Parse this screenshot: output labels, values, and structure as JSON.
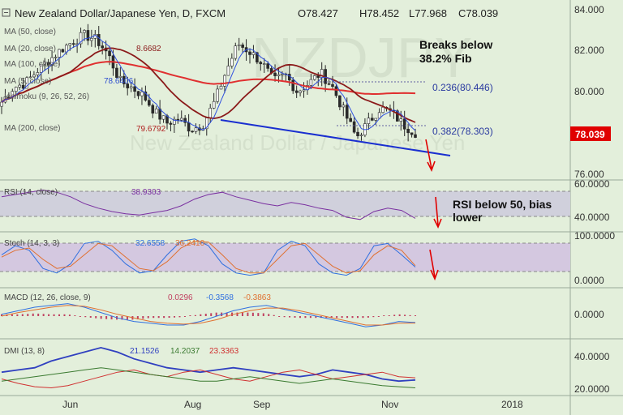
{
  "header": {
    "symbol": "New Zealand Dollar/Japanese Yen, D, FXCM",
    "open": "O78.427",
    "high": "H78.452",
    "low": "L77.968",
    "close": "C78.039"
  },
  "indicators": [
    {
      "label": "MA (50, close)",
      "value": "",
      "color": "#d04030"
    },
    {
      "label": "MA (20, close)",
      "value": "8.6682",
      "color": "#8b1a1a"
    },
    {
      "label": "MA (100, close)",
      "value": "",
      "color": "#d03030"
    },
    {
      "label": "MA (5, close)",
      "value": "78.6406",
      "color": "#3050d0"
    },
    {
      "label": "Ichimoku (9, 26, 52, 26)",
      "value": "",
      "color": "#3050d0"
    },
    {
      "label": "MA (200, close)",
      "value": "79.6792",
      "color": "#d02020"
    }
  ],
  "annotations": {
    "fib_note": [
      "Breaks below",
      "38.2% Fib"
    ],
    "rsi_note": [
      "RSI below 50, bias",
      "lower"
    ],
    "fib_236": "0.236(80.446)",
    "fib_382": "0.382(78.303)"
  },
  "watermark": [
    "NZDJPY",
    "New Zealand Dollar / Japanese Yen"
  ],
  "last_price": "78.039",
  "colors": {
    "background": "#e3efdb",
    "candle": "#2a2a2a",
    "ma_fast": "#3050e0",
    "ma_mid": "#8b1a1a",
    "ma_slow": "#e03030",
    "trendline": "#1a2fd0",
    "rsi": "#7a30a0",
    "stoch_k": "#3070e0",
    "stoch_d": "#e07030",
    "macd": "#3070e0",
    "signal": "#e07030",
    "hist": "#c04060",
    "dmi_plus": "#3040c0",
    "dmi_minus": "#d03030",
    "adx": "#3a7a30",
    "price_badge": "#e00000",
    "arrow": "#e00000"
  },
  "chart_data": [
    {
      "type": "candlestick",
      "title": "New Zealand Dollar/Japanese Yen, D, FXCM",
      "x_ticks": [
        "Jun",
        "Aug",
        "Sep",
        "Nov",
        "2018"
      ],
      "y_ticks": [
        "84.000",
        "82.000",
        "80.000",
        "78.000",
        "76.000"
      ],
      "ylim": [
        76,
        84
      ],
      "close_path": [
        79.5,
        80.2,
        80.4,
        81.0,
        81.5,
        82.0,
        82.4,
        82.7,
        82.5,
        81.8,
        80.5,
        80.2,
        79.8,
        79.0,
        78.5,
        78.7,
        78.2,
        78.4,
        79.5,
        81.0,
        82.3,
        81.9,
        81.4,
        80.5,
        80.8,
        80.0,
        80.4,
        80.9,
        80.2,
        79.0,
        77.8,
        78.5,
        79.2,
        79.0,
        78.4,
        78.04
      ],
      "close": 78.039
    },
    {
      "type": "line",
      "title": "RSI (14, close)",
      "value": "38.9303",
      "y_ticks": [
        "60.0000",
        "40.0000"
      ],
      "ylim": [
        30,
        70
      ],
      "series": [
        {
          "values": [
            58,
            60,
            62,
            64,
            62,
            58,
            52,
            48,
            45,
            43,
            42,
            44,
            46,
            50,
            56,
            60,
            62,
            58,
            55,
            52,
            50,
            53,
            51,
            48,
            46,
            40,
            38,
            45,
            48,
            46,
            39
          ]
        }
      ]
    },
    {
      "type": "line",
      "title": "Stoch (14, 3, 3)",
      "values": [
        "32.6558",
        "36.2410"
      ],
      "y_ticks": [
        "100.0000",
        "0.0000"
      ],
      "ylim": [
        0,
        100
      ],
      "series": [
        {
          "values": [
            60,
            80,
            70,
            30,
            20,
            40,
            85,
            90,
            70,
            40,
            20,
            25,
            60,
            90,
            95,
            80,
            40,
            20,
            15,
            20,
            70,
            90,
            80,
            40,
            20,
            15,
            30,
            80,
            85,
            60,
            33
          ]
        },
        {
          "values": [
            55,
            70,
            75,
            50,
            30,
            35,
            60,
            85,
            80,
            55,
            30,
            25,
            45,
            75,
            90,
            88,
            60,
            30,
            20,
            20,
            50,
            80,
            85,
            60,
            35,
            20,
            25,
            60,
            80,
            70,
            36
          ]
        }
      ]
    },
    {
      "type": "line",
      "title": "MACD (12, 26, close, 9)",
      "values": [
        "0.0296",
        "-0.3568",
        "-0.3863"
      ],
      "y_ticks": [
        "0.0000"
      ],
      "ylim": [
        -1,
        1
      ],
      "series": [
        {
          "values": [
            0.1,
            0.3,
            0.5,
            0.6,
            0.7,
            0.5,
            0.2,
            -0.1,
            -0.3,
            -0.4,
            -0.5,
            -0.5,
            -0.3,
            0.0,
            0.3,
            0.5,
            0.6,
            0.4,
            0.2,
            0.0,
            -0.2,
            -0.4,
            -0.6,
            -0.5,
            -0.3,
            -0.36
          ]
        },
        {
          "values": [
            0.0,
            0.2,
            0.35,
            0.5,
            0.6,
            0.55,
            0.35,
            0.1,
            -0.1,
            -0.3,
            -0.4,
            -0.45,
            -0.4,
            -0.2,
            0.1,
            0.3,
            0.45,
            0.45,
            0.3,
            0.1,
            -0.1,
            -0.3,
            -0.5,
            -0.5,
            -0.4,
            -0.39
          ]
        }
      ]
    },
    {
      "type": "line",
      "title": "DMI (13, 8)",
      "values": [
        "21.1526",
        "14.2037",
        "23.3363"
      ],
      "y_ticks": [
        "40.0000",
        "20.0000"
      ],
      "ylim": [
        10,
        55
      ],
      "series": [
        {
          "values": [
            28,
            30,
            32,
            38,
            42,
            46,
            50,
            46,
            40,
            36,
            32,
            30,
            28,
            30,
            32,
            30,
            28,
            26,
            24,
            26,
            30,
            28,
            26,
            22,
            20,
            21
          ]
        },
        {
          "values": [
            22,
            18,
            15,
            14,
            16,
            20,
            24,
            28,
            30,
            26,
            24,
            28,
            30,
            26,
            22,
            20,
            24,
            28,
            30,
            26,
            22,
            24,
            26,
            28,
            24,
            23
          ]
        },
        {
          "values": [
            20,
            22,
            24,
            26,
            28,
            30,
            32,
            30,
            28,
            26,
            24,
            22,
            20,
            20,
            22,
            24,
            22,
            20,
            18,
            20,
            22,
            20,
            18,
            16,
            15,
            14
          ]
        }
      ]
    }
  ]
}
